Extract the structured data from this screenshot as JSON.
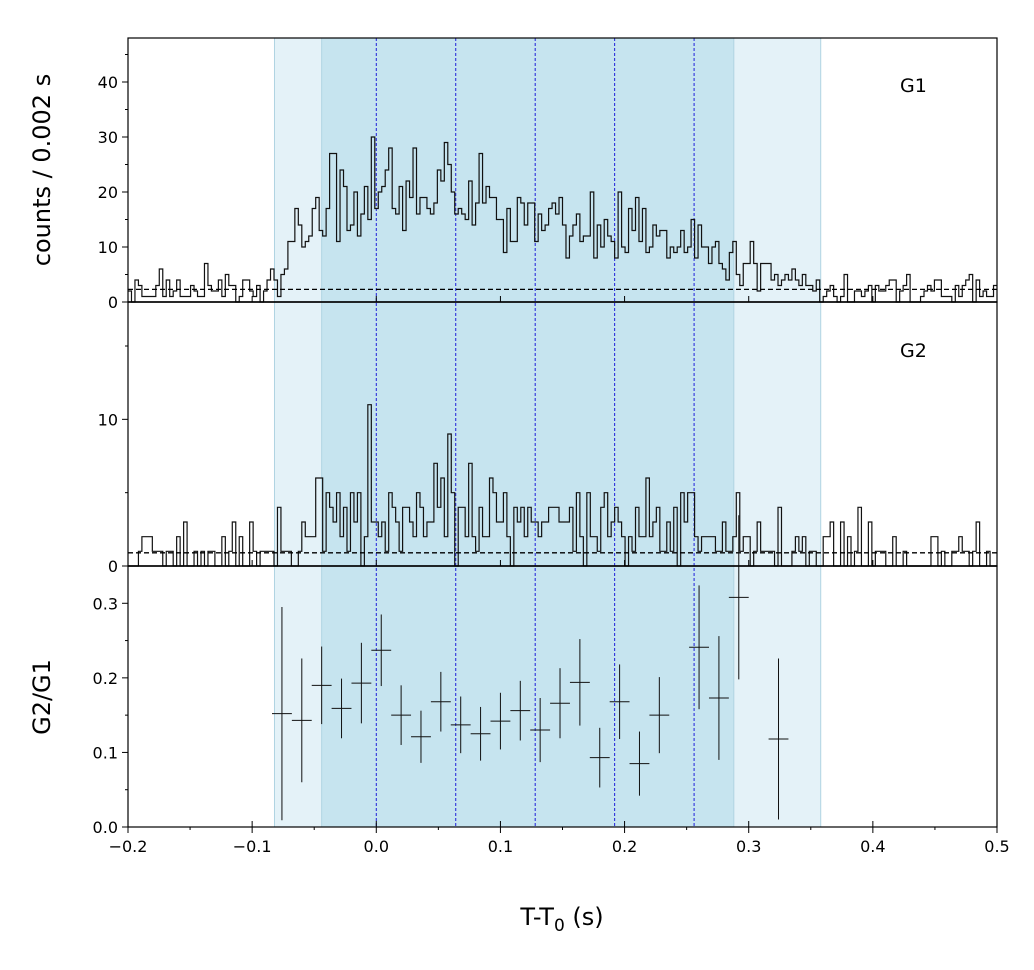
{
  "chart_data": {
    "type": "line",
    "subtype": "lightcurve-histogram-with-ratio",
    "shared_x": {
      "label_main": "T-T",
      "label_sub": "0",
      "label_unit": " (s)",
      "range": [
        -0.2,
        0.5
      ],
      "ticks": [
        -0.2,
        -0.1,
        0.0,
        0.1,
        0.2,
        0.3,
        0.4,
        0.5
      ],
      "tick_labels": [
        "−0.2",
        "−0.1",
        "0.0",
        "0.1",
        "0.2",
        "0.3",
        "0.4",
        "0.5"
      ]
    },
    "ylabel_counts": "counts /  0.002 s",
    "ylabel_ratio": "G2/G1",
    "shaded_regions": [
      {
        "from": -0.082,
        "to": 0.358,
        "color": "#e4f2f8"
      },
      {
        "from": -0.044,
        "to": 0.288,
        "color": "#c6e4ef"
      }
    ],
    "vertical_lines": {
      "x": [
        0.0,
        0.064,
        0.128,
        0.192,
        0.256
      ],
      "color": "#1f1fd8",
      "style": "dashed"
    },
    "panels": [
      {
        "label": "G1",
        "ylim": [
          0,
          48
        ],
        "ticks": [
          0,
          10,
          20,
          30,
          40
        ],
        "tick_labels": [
          "0",
          "10",
          "20",
          "30",
          "40"
        ],
        "background_level": 2.3,
        "bin_width": 0.002,
        "profile": [
          [
            -0.2,
            2
          ],
          [
            -0.09,
            2
          ],
          [
            -0.075,
            5
          ],
          [
            -0.06,
            12
          ],
          [
            -0.045,
            18
          ],
          [
            -0.03,
            20
          ],
          [
            -0.01,
            17
          ],
          [
            0.0,
            19
          ],
          [
            0.02,
            20
          ],
          [
            0.05,
            20
          ],
          [
            0.07,
            18
          ],
          [
            0.1,
            16
          ],
          [
            0.13,
            14
          ],
          [
            0.16,
            14
          ],
          [
            0.2,
            14
          ],
          [
            0.23,
            13
          ],
          [
            0.26,
            10
          ],
          [
            0.3,
            8
          ],
          [
            0.33,
            5
          ],
          [
            0.358,
            2
          ],
          [
            0.5,
            2
          ]
        ]
      },
      {
        "label": "G2",
        "ylim": [
          0,
          18
        ],
        "ticks": [
          0,
          10
        ],
        "tick_labels": [
          "0",
          "10"
        ],
        "background_level": 0.9,
        "bin_width": 0.002,
        "profile": [
          [
            -0.2,
            0.8
          ],
          [
            -0.09,
            0.9
          ],
          [
            -0.06,
            1.5
          ],
          [
            -0.045,
            3.2
          ],
          [
            0.0,
            3.8
          ],
          [
            0.05,
            3.3
          ],
          [
            0.1,
            3.0
          ],
          [
            0.15,
            2.8
          ],
          [
            0.2,
            2.6
          ],
          [
            0.25,
            2.4
          ],
          [
            0.3,
            1.8
          ],
          [
            0.33,
            1.1
          ],
          [
            0.358,
            0.9
          ],
          [
            0.5,
            0.8
          ]
        ]
      },
      {
        "label": "",
        "type": "errorbar",
        "ylim": [
          0.0,
          0.35
        ],
        "ticks": [
          0.0,
          0.1,
          0.2,
          0.3
        ],
        "tick_labels": [
          "0.0",
          "0.1",
          "0.2",
          "0.3"
        ],
        "points": [
          {
            "x": -0.076,
            "xerr": 0.008,
            "y": 0.152,
            "yerr": 0.143
          },
          {
            "x": -0.06,
            "xerr": 0.008,
            "y": 0.143,
            "yerr": 0.083
          },
          {
            "x": -0.044,
            "xerr": 0.008,
            "y": 0.19,
            "yerr": 0.052
          },
          {
            "x": -0.028,
            "xerr": 0.008,
            "y": 0.159,
            "yerr": 0.04
          },
          {
            "x": -0.012,
            "xerr": 0.008,
            "y": 0.193,
            "yerr": 0.054
          },
          {
            "x": 0.004,
            "xerr": 0.008,
            "y": 0.237,
            "yerr": 0.048
          },
          {
            "x": 0.02,
            "xerr": 0.008,
            "y": 0.15,
            "yerr": 0.04
          },
          {
            "x": 0.036,
            "xerr": 0.008,
            "y": 0.121,
            "yerr": 0.035
          },
          {
            "x": 0.052,
            "xerr": 0.008,
            "y": 0.168,
            "yerr": 0.04
          },
          {
            "x": 0.068,
            "xerr": 0.008,
            "y": 0.137,
            "yerr": 0.038
          },
          {
            "x": 0.084,
            "xerr": 0.008,
            "y": 0.125,
            "yerr": 0.036
          },
          {
            "x": 0.1,
            "xerr": 0.008,
            "y": 0.142,
            "yerr": 0.038
          },
          {
            "x": 0.116,
            "xerr": 0.008,
            "y": 0.156,
            "yerr": 0.04
          },
          {
            "x": 0.132,
            "xerr": 0.008,
            "y": 0.13,
            "yerr": 0.043
          },
          {
            "x": 0.148,
            "xerr": 0.008,
            "y": 0.166,
            "yerr": 0.047
          },
          {
            "x": 0.164,
            "xerr": 0.008,
            "y": 0.194,
            "yerr": 0.058
          },
          {
            "x": 0.18,
            "xerr": 0.008,
            "y": 0.093,
            "yerr": 0.04
          },
          {
            "x": 0.196,
            "xerr": 0.008,
            "y": 0.168,
            "yerr": 0.05
          },
          {
            "x": 0.212,
            "xerr": 0.008,
            "y": 0.085,
            "yerr": 0.043
          },
          {
            "x": 0.228,
            "xerr": 0.008,
            "y": 0.15,
            "yerr": 0.051
          },
          {
            "x": 0.26,
            "xerr": 0.008,
            "y": 0.241,
            "yerr": 0.083
          },
          {
            "x": 0.276,
            "xerr": 0.008,
            "y": 0.173,
            "yerr": 0.083
          },
          {
            "x": 0.292,
            "xerr": 0.008,
            "y": 0.308,
            "yerr": 0.11
          },
          {
            "x": 0.324,
            "xerr": 0.008,
            "y": 0.118,
            "yerr": 0.108
          }
        ]
      }
    ]
  }
}
